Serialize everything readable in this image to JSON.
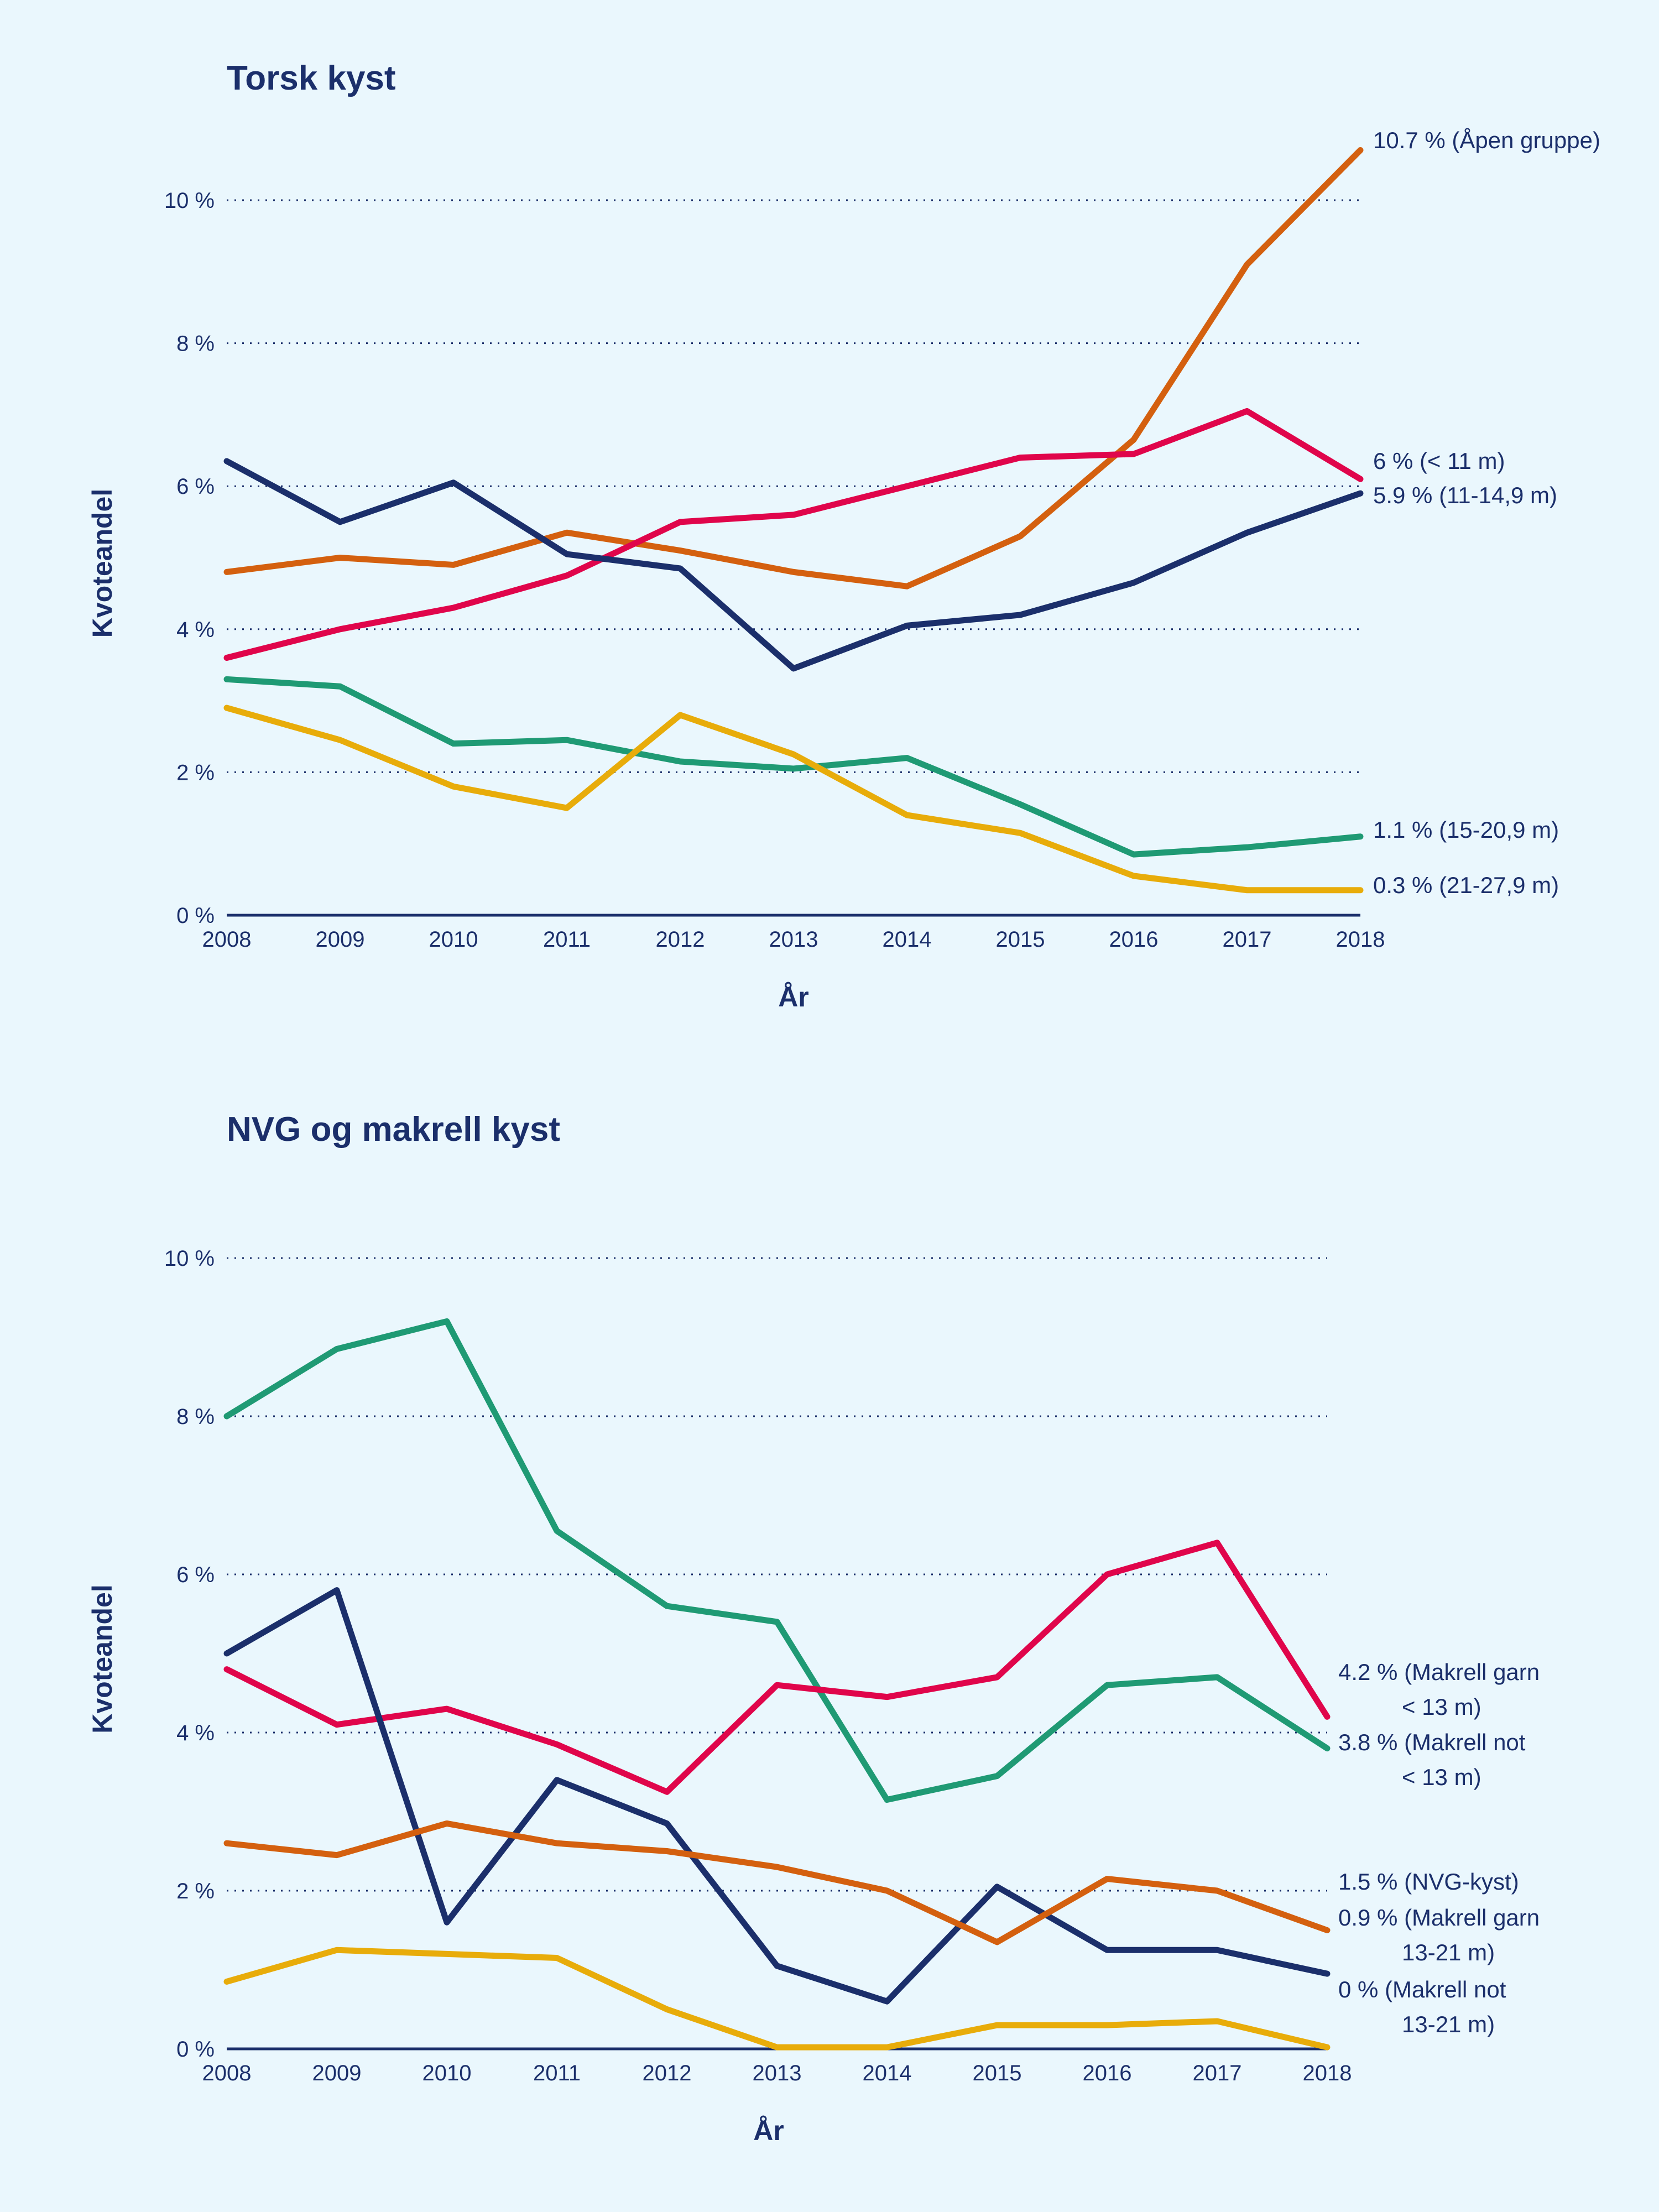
{
  "chart_data": [
    {
      "type": "line",
      "title": "Torsk kyst",
      "xlabel": "År",
      "ylabel": "Kvoteandel",
      "x": [
        2008,
        2009,
        2010,
        2011,
        2012,
        2013,
        2014,
        2015,
        2016,
        2017,
        2018
      ],
      "ylim": [
        0,
        11
      ],
      "yticks": [
        0,
        2,
        4,
        6,
        8,
        10
      ],
      "ytick_labels": [
        "0 %",
        "2 %",
        "4 %",
        "6 %",
        "8 %",
        "10 %"
      ],
      "grid": true,
      "series": [
        {
          "name": "Åpen gruppe",
          "color": "#d4600f",
          "end_label": "10.7 % (Åpen gruppe)",
          "values": [
            4.8,
            5.0,
            4.9,
            5.35,
            5.1,
            4.8,
            4.6,
            5.3,
            6.65,
            9.1,
            10.7
          ]
        },
        {
          "name": "< 11 m",
          "color": "#e0054b",
          "end_label": "6 % (< 11 m)",
          "values": [
            3.6,
            4.0,
            4.3,
            4.75,
            5.5,
            5.6,
            6.0,
            6.4,
            6.45,
            7.05,
            6.1
          ]
        },
        {
          "name": "11-14,9 m",
          "color": "#1b2f6b",
          "end_label": "5.9 % (11-14,9 m)",
          "values": [
            6.35,
            5.5,
            6.05,
            5.05,
            4.85,
            3.45,
            4.05,
            4.2,
            4.65,
            5.35,
            5.9
          ]
        },
        {
          "name": "15-20,9 m",
          "color": "#1f9a74",
          "end_label": "1.1 % (15-20,9 m)",
          "values": [
            3.3,
            3.2,
            2.4,
            2.45,
            2.15,
            2.05,
            2.2,
            1.55,
            0.85,
            0.95,
            1.1
          ]
        },
        {
          "name": "21-27,9 m",
          "color": "#e8ac0a",
          "end_label": "0.3 % (21-27,9 m)",
          "values": [
            2.9,
            2.45,
            1.8,
            1.5,
            2.8,
            2.25,
            1.4,
            1.15,
            0.55,
            0.35,
            0.35
          ]
        }
      ]
    },
    {
      "type": "line",
      "title": "NVG og makrell kyst",
      "xlabel": "År",
      "ylabel": "Kvoteandel",
      "x": [
        2008,
        2009,
        2010,
        2011,
        2012,
        2013,
        2014,
        2015,
        2016,
        2017,
        2018
      ],
      "ylim": [
        0,
        11
      ],
      "yticks": [
        0,
        2,
        4,
        6,
        8,
        10
      ],
      "ytick_labels": [
        "0 %",
        "2 %",
        "4 %",
        "6 %",
        "8 %",
        "10 %"
      ],
      "grid": true,
      "series": [
        {
          "name": "Makrell not < 13 m",
          "color": "#1f9a74",
          "end_label": [
            "3.8 % (Makrell not",
            "< 13 m)"
          ],
          "values": [
            8.0,
            8.85,
            9.2,
            6.55,
            5.6,
            5.4,
            3.15,
            3.45,
            4.6,
            4.7,
            3.8
          ]
        },
        {
          "name": "Makrell garn < 13 m",
          "color": "#e0054b",
          "end_label": [
            "4.2 % (Makrell garn",
            "< 13 m)"
          ],
          "values": [
            4.8,
            4.1,
            4.3,
            3.85,
            3.25,
            4.6,
            4.45,
            4.7,
            6.0,
            6.4,
            4.2
          ]
        },
        {
          "name": "Makrell garn 13-21 m",
          "color": "#1b2f6b",
          "end_label": [
            "0.9 % (Makrell garn",
            "13-21 m)"
          ],
          "values": [
            5.0,
            5.8,
            1.6,
            3.4,
            2.85,
            1.05,
            0.6,
            2.05,
            1.25,
            1.25,
            0.95
          ]
        },
        {
          "name": "NVG-kyst",
          "color": "#d4600f",
          "end_label": [
            "1.5 % (NVG-kyst)"
          ],
          "values": [
            2.6,
            2.45,
            2.85,
            2.6,
            2.5,
            2.3,
            2.0,
            1.35,
            2.15,
            2.0,
            1.5
          ]
        },
        {
          "name": "Makrell not 13-21 m",
          "color": "#e8ac0a",
          "end_label": [
            "0 % (Makrell not",
            "13-21 m)"
          ],
          "values": [
            0.85,
            1.25,
            1.2,
            1.15,
            0.5,
            0.02,
            0.02,
            0.3,
            0.3,
            0.35,
            0.02
          ]
        }
      ]
    }
  ]
}
